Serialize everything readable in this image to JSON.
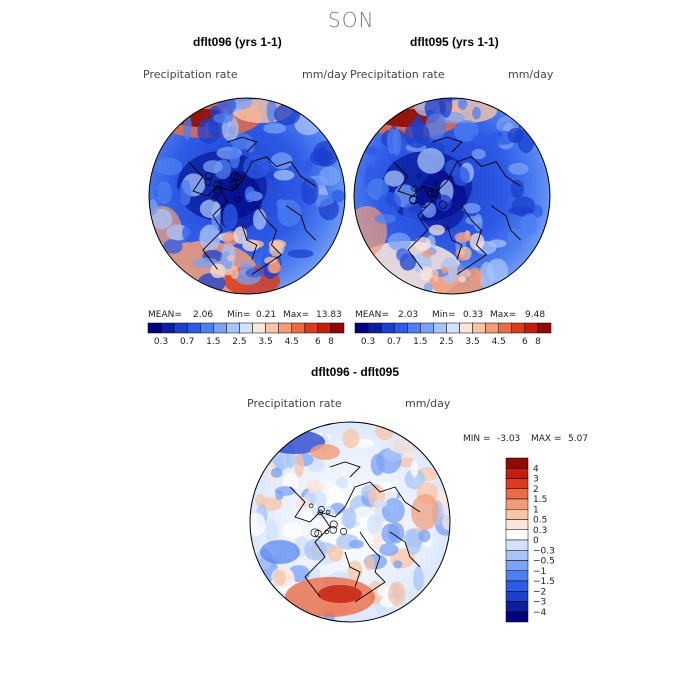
{
  "title": "SON",
  "panels": [
    {
      "title": "dflt096 (yrs 1-1)",
      "variable": "Precipitation rate",
      "units": "mm/day",
      "stats": {
        "mean_label": "MEAN=",
        "mean": "2.06",
        "min_label": "Min=",
        "min": "0.21",
        "max_label": "Max=",
        "max": "13.83"
      }
    },
    {
      "title": "dflt095 (yrs 1-1)",
      "variable": "Precipitation rate",
      "units": "mm/day",
      "stats": {
        "mean_label": "MEAN=",
        "mean": "2.03",
        "min_label": "Min=",
        "min": "0.33",
        "max_label": "Max=",
        "max": "9.48"
      }
    },
    {
      "title": "dflt096 - dflt095",
      "variable": "Precipitation rate",
      "units": "mm/day",
      "stats": {
        "min_label": "MIN =",
        "min": "-3.03",
        "max_label": "MAX =",
        "max": "5.07"
      }
    }
  ],
  "colorbar_top": {
    "ticks": [
      "0.3",
      "0.7",
      "1.5",
      "2.5",
      "3.5",
      "4.5",
      "6",
      "8"
    ],
    "colors": [
      "#00007f",
      "#0a1fa0",
      "#1c3fcc",
      "#2e5ae6",
      "#4e7ff0",
      "#7aa2f5",
      "#a8c4fa",
      "#d2e2fc",
      "#fbe6d9",
      "#f8c4a6",
      "#f29b76",
      "#ea6b46",
      "#dc3c1d",
      "#c41e0e",
      "#8f0b05"
    ]
  },
  "colorbar_diff": {
    "labels": [
      "4",
      "3",
      "2",
      "1.5",
      "1",
      "0.5",
      "0.3",
      "0",
      "−0.3",
      "−0.5",
      "−1",
      "−1.5",
      "−2",
      "−3",
      "−4"
    ],
    "colors": [
      "#8f0b05",
      "#c41e0e",
      "#dc3c1d",
      "#ea6b46",
      "#f29b76",
      "#f8c4a6",
      "#fbe6d9",
      "#ffffff",
      "#d2e2fc",
      "#a8c4fa",
      "#7aa2f5",
      "#4e7ff0",
      "#2e5ae6",
      "#1c3fcc",
      "#0a1fa0",
      "#00007f"
    ]
  },
  "chart_data": [
    {
      "type": "heatmap",
      "title": "dflt096 (yrs 1-1)",
      "projection": "north polar stereographic",
      "variable": "Precipitation rate",
      "units": "mm/day",
      "mean": 2.06,
      "min": 0.21,
      "max": 13.83,
      "levels": [
        0.3,
        0.7,
        1.5,
        2.5,
        3.5,
        4.5,
        6,
        8
      ]
    },
    {
      "type": "heatmap",
      "title": "dflt095 (yrs 1-1)",
      "projection": "north polar stereographic",
      "variable": "Precipitation rate",
      "units": "mm/day",
      "mean": 2.03,
      "min": 0.33,
      "max": 9.48,
      "levels": [
        0.3,
        0.7,
        1.5,
        2.5,
        3.5,
        4.5,
        6,
        8
      ]
    },
    {
      "type": "heatmap",
      "title": "dflt096 - dflt095",
      "projection": "north polar stereographic",
      "variable": "Precipitation rate",
      "units": "mm/day",
      "min": -3.03,
      "max": 5.07,
      "levels": [
        -4,
        -3,
        -2,
        -1.5,
        -1,
        -0.5,
        -0.3,
        0,
        0.3,
        0.5,
        1,
        1.5,
        2,
        3,
        4
      ]
    }
  ]
}
